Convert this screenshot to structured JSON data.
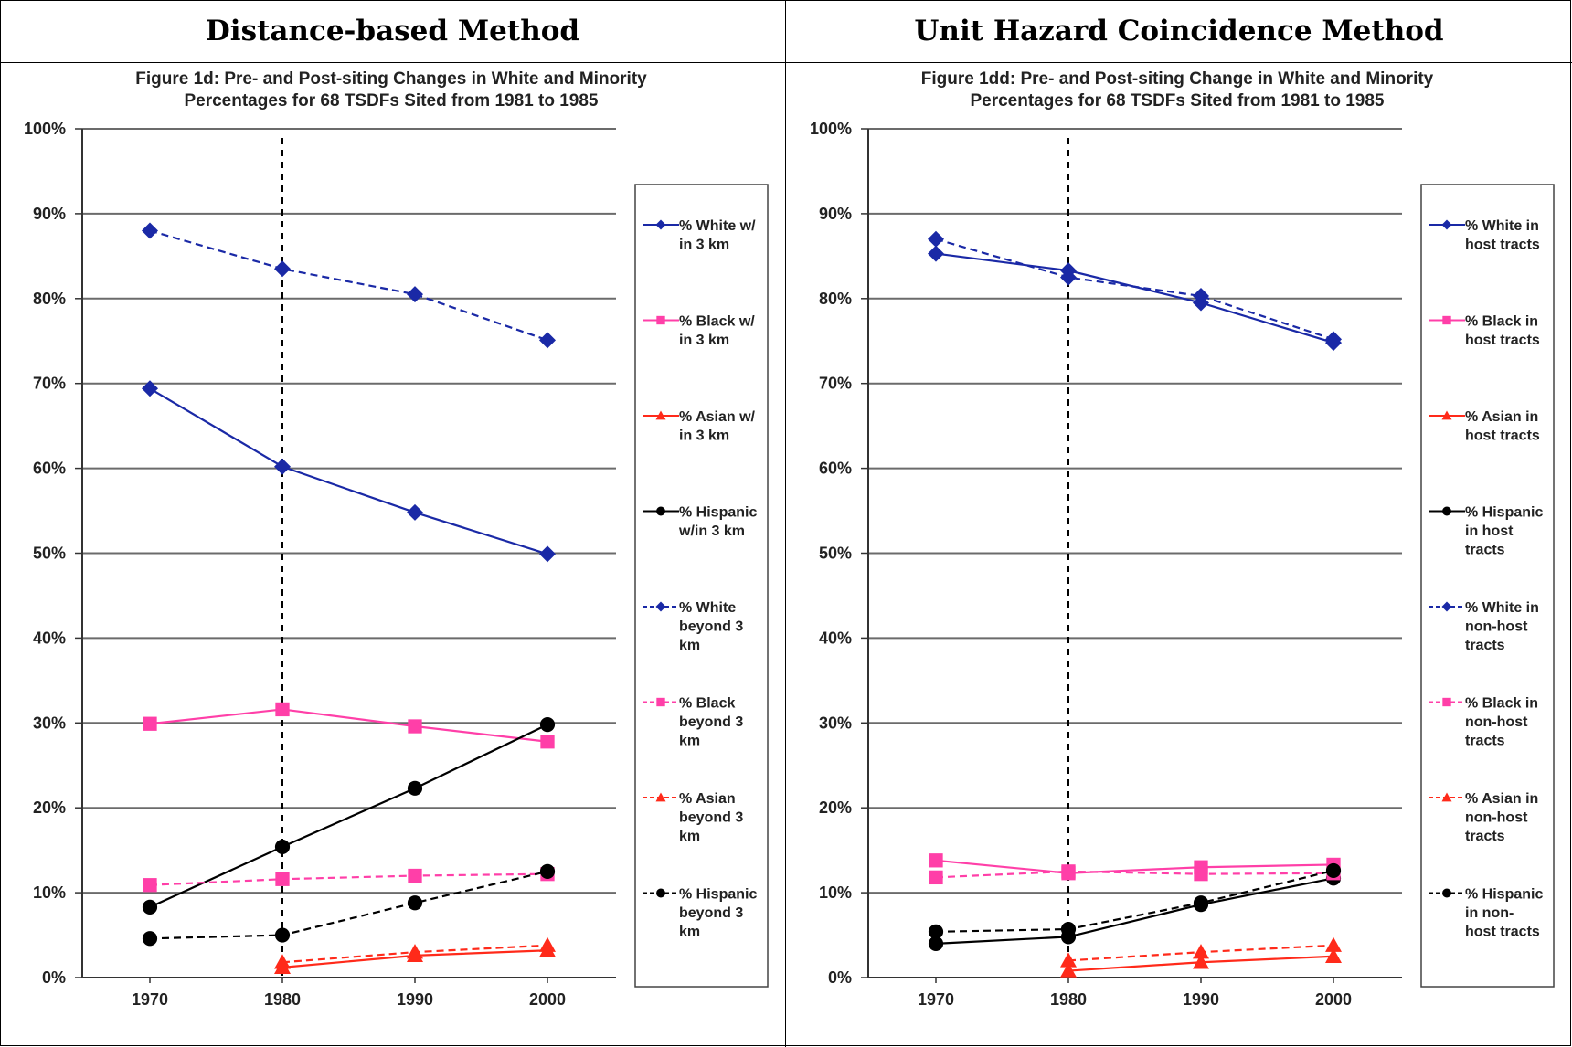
{
  "headers": {
    "left": "Distance-based Method",
    "right": "Unit Hazard Coincidence Method"
  },
  "chart_data": [
    {
      "type": "line",
      "title": "Figure 1d: Pre- and Post-siting Changes in White and Minority Percentages for 68 TSDFs Sited from 1981 to 1985",
      "title_lines": [
        "Figure 1d: Pre- and Post-siting Changes in White and Minority",
        "Percentages for 68 TSDFs Sited from 1981 to 1985"
      ],
      "x": [
        1970,
        1980,
        1990,
        2000
      ],
      "x_tick_labels": [
        "1970",
        "1980",
        "1990",
        "2000"
      ],
      "y_tick_labels": [
        "0%",
        "10%",
        "20%",
        "30%",
        "40%",
        "50%",
        "60%",
        "70%",
        "80%",
        "90%",
        "100%"
      ],
      "ylim": [
        0,
        100
      ],
      "y_unit": "%",
      "grid": true,
      "legend_position": "right",
      "vertical_reference_line": 1980,
      "series": [
        {
          "name": "% White w/ in 3 km",
          "legend_lines": [
            "% White w/",
            "in 3 km"
          ],
          "color": "#1a29a6",
          "dash": false,
          "marker": "diamond",
          "values": [
            69.4,
            60.2,
            54.8,
            49.9
          ]
        },
        {
          "name": "% Black w/ in 3 km",
          "legend_lines": [
            "% Black w/",
            "in 3 km"
          ],
          "color": "#ff3fa8",
          "dash": false,
          "marker": "square",
          "values": [
            29.9,
            31.6,
            29.6,
            27.8
          ]
        },
        {
          "name": "% Asian w/ in 3 km",
          "legend_lines": [
            "% Asian w/",
            "in 3 km"
          ],
          "color": "#ff2a1a",
          "dash": false,
          "marker": "triangle",
          "values": [
            null,
            1.2,
            2.6,
            3.2
          ]
        },
        {
          "name": "% Hispanic w/in 3 km",
          "legend_lines": [
            "% Hispanic",
            "w/in 3 km"
          ],
          "color": "#000000",
          "dash": false,
          "marker": "circle",
          "values": [
            8.3,
            15.4,
            22.3,
            29.8
          ]
        },
        {
          "name": "% White beyond 3 km",
          "legend_lines": [
            "% White",
            "beyond 3",
            "km"
          ],
          "color": "#1a29a6",
          "dash": true,
          "marker": "diamond",
          "values": [
            88.0,
            83.5,
            80.5,
            75.1
          ]
        },
        {
          "name": "% Black beyond 3 km",
          "legend_lines": [
            "% Black",
            "beyond 3",
            "km"
          ],
          "color": "#ff3fa8",
          "dash": true,
          "marker": "square",
          "values": [
            10.9,
            11.6,
            12.0,
            12.2
          ]
        },
        {
          "name": "% Asian beyond 3 km",
          "legend_lines": [
            "% Asian",
            "beyond 3",
            "km"
          ],
          "color": "#ff2a1a",
          "dash": true,
          "marker": "triangle",
          "values": [
            null,
            1.8,
            3.0,
            3.8
          ]
        },
        {
          "name": "% Hispanic beyond 3 km",
          "legend_lines": [
            "% Hispanic",
            "beyond 3",
            "km"
          ],
          "color": "#000000",
          "dash": true,
          "marker": "circle",
          "values": [
            4.6,
            5.0,
            8.8,
            12.5
          ]
        }
      ]
    },
    {
      "type": "line",
      "title": "Figure 1dd: Pre- and Post-siting Change in White and Minority Percentages for 68 TSDFs Sited from 1981 to 1985",
      "title_lines": [
        "Figure 1dd: Pre- and Post-siting Change in White and Minority",
        "Percentages for 68 TSDFs Sited from 1981 to 1985"
      ],
      "x": [
        1970,
        1980,
        1990,
        2000
      ],
      "x_tick_labels": [
        "1970",
        "1980",
        "1990",
        "2000"
      ],
      "y_tick_labels": [
        "0%",
        "10%",
        "20%",
        "30%",
        "40%",
        "50%",
        "60%",
        "70%",
        "80%",
        "90%",
        "100%"
      ],
      "ylim": [
        0,
        100
      ],
      "y_unit": "%",
      "grid": true,
      "legend_position": "right",
      "vertical_reference_line": 1980,
      "series": [
        {
          "name": "% White in host tracts",
          "legend_lines": [
            "% White in",
            "host tracts"
          ],
          "color": "#1a29a6",
          "dash": false,
          "marker": "diamond",
          "values": [
            85.3,
            83.3,
            79.5,
            74.8
          ]
        },
        {
          "name": "% Black in host tracts",
          "legend_lines": [
            "% Black in",
            "host tracts"
          ],
          "color": "#ff3fa8",
          "dash": false,
          "marker": "square",
          "values": [
            13.8,
            12.3,
            13.0,
            13.3
          ]
        },
        {
          "name": "% Asian in host tracts",
          "legend_lines": [
            "% Asian in",
            "host tracts"
          ],
          "color": "#ff2a1a",
          "dash": false,
          "marker": "triangle",
          "values": [
            null,
            0.8,
            1.8,
            2.5
          ]
        },
        {
          "name": "% Hispanic in host tracts",
          "legend_lines": [
            "% Hispanic",
            "in host",
            "tracts"
          ],
          "color": "#000000",
          "dash": false,
          "marker": "circle",
          "values": [
            4.0,
            4.8,
            8.6,
            11.7
          ]
        },
        {
          "name": "% White in non-host tracts",
          "legend_lines": [
            "% White in",
            "non-host",
            "tracts"
          ],
          "color": "#1a29a6",
          "dash": true,
          "marker": "diamond",
          "values": [
            87.0,
            82.5,
            80.3,
            75.2
          ]
        },
        {
          "name": "% Black in non-host tracts",
          "legend_lines": [
            "% Black in",
            "non-host",
            "tracts"
          ],
          "color": "#ff3fa8",
          "dash": true,
          "marker": "square",
          "values": [
            11.8,
            12.5,
            12.2,
            12.3
          ]
        },
        {
          "name": "% Asian in non-host tracts",
          "legend_lines": [
            "% Asian in",
            "non-host",
            "tracts"
          ],
          "color": "#ff2a1a",
          "dash": true,
          "marker": "triangle",
          "values": [
            null,
            2.0,
            3.0,
            3.8
          ]
        },
        {
          "name": "% Hispanic in non-host tracts",
          "legend_lines": [
            "% Hispanic",
            "in non-",
            "host tracts"
          ],
          "color": "#000000",
          "dash": true,
          "marker": "circle",
          "values": [
            5.4,
            5.7,
            8.8,
            12.6
          ]
        }
      ]
    }
  ]
}
